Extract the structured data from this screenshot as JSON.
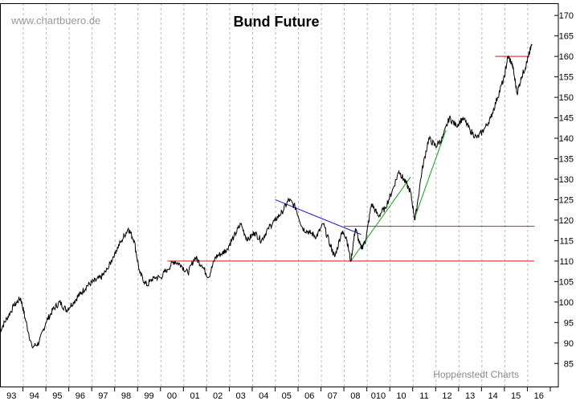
{
  "watermark": "www.chartbuero.de",
  "credit": "Hoppenstedt Charts",
  "colors": {
    "background": "#ffffff",
    "price_line": "#000000",
    "gridline": "#b8b8b8",
    "horizontal_lines": "#d01818",
    "downtrend": "#1a1ad0",
    "uptrend": "#18a018"
  },
  "chart_data": {
    "type": "line",
    "title": "Bund Future",
    "xlabel": "",
    "ylabel": "",
    "x_tick_labels": [
      "93",
      "94",
      "95",
      "96",
      "97",
      "98",
      "99",
      "00",
      "01",
      "02",
      "03",
      "04",
      "05",
      "06",
      "07",
      "08",
      "010",
      "10",
      "11",
      "12",
      "13",
      "14",
      "15",
      "16"
    ],
    "y_ticks": [
      85,
      90,
      95,
      100,
      105,
      110,
      115,
      120,
      125,
      130,
      135,
      140,
      145,
      150,
      155,
      160,
      165,
      170
    ],
    "ylim": [
      82.5,
      172
    ],
    "xlim": [
      1993.0,
      2016.3
    ],
    "y_axis_position": "right",
    "grid": "vertical dotted at each year",
    "series": [
      {
        "x": [
          1993.0,
          1993.3,
          1993.6,
          1993.9,
          1994.1,
          1994.4,
          1994.7,
          1995.0,
          1995.3,
          1995.6,
          1995.9,
          1996.2,
          1996.5,
          1996.8,
          1997.1,
          1997.4,
          1997.7,
          1998.0,
          1998.3,
          1998.6,
          1998.85,
          1999.1,
          1999.4,
          1999.7,
          2000.0,
          2000.3,
          2000.6,
          2000.9,
          2001.2,
          2001.5,
          2001.8,
          2002.1,
          2002.4,
          2002.7,
          2002.9,
          2003.2,
          2003.5,
          2003.8,
          2004.1,
          2004.4,
          2004.7,
          2005.0,
          2005.3,
          2005.6,
          2005.9,
          2006.2,
          2006.5,
          2006.8,
          2007.1,
          2007.4,
          2007.6,
          2007.9,
          2008.1,
          2008.3,
          2008.5,
          2008.75,
          2008.95,
          2009.2,
          2009.5,
          2009.8,
          2010.1,
          2010.4,
          2010.6,
          2010.9,
          2011.1,
          2011.4,
          2011.7,
          2012.0,
          2012.3,
          2012.6,
          2012.9,
          2013.2,
          2013.5,
          2013.8,
          2014.1,
          2014.4,
          2014.7,
          2015.0,
          2015.15,
          2015.35,
          2015.55,
          2015.75,
          2015.95,
          2016.1,
          2016.2
        ],
        "y": [
          93,
          96,
          99,
          101,
          96,
          89,
          90,
          95,
          98,
          100,
          98,
          100,
          102,
          104,
          105,
          106,
          108,
          112,
          115,
          118,
          115,
          107,
          104,
          106,
          106,
          108,
          110,
          109,
          107,
          111,
          109,
          106,
          111,
          112,
          113,
          116,
          119,
          115,
          117,
          115,
          118,
          120,
          122,
          125,
          123,
          118,
          117,
          116,
          119,
          114,
          111,
          117,
          116,
          110,
          118,
          113,
          115,
          124,
          121,
          123,
          127,
          132,
          130,
          127,
          120,
          132,
          140,
          138,
          140,
          145,
          143,
          145,
          142,
          140,
          142,
          145,
          150,
          155,
          160,
          158,
          151,
          155,
          158,
          161,
          163
        ]
      }
    ],
    "annotations": {
      "horizontal_lines": [
        {
          "y": 110,
          "x_from": 2000.3,
          "x_to": 2016.3
        },
        {
          "y": 118.5,
          "x_from": 2008.0,
          "x_to": 2016.3
        },
        {
          "y": 160,
          "x_from": 2014.6,
          "x_to": 2016.1
        }
      ],
      "trendlines": [
        {
          "kind": "downtrend",
          "from": [
            2005.0,
            125
          ],
          "to": [
            2008.75,
            116.5
          ]
        },
        {
          "kind": "uptrend",
          "from": [
            2008.3,
            110
          ],
          "to": [
            2010.9,
            130.5
          ]
        },
        {
          "kind": "uptrend",
          "from": [
            2011.05,
            120
          ],
          "to": [
            2012.45,
            142
          ]
        }
      ]
    }
  }
}
